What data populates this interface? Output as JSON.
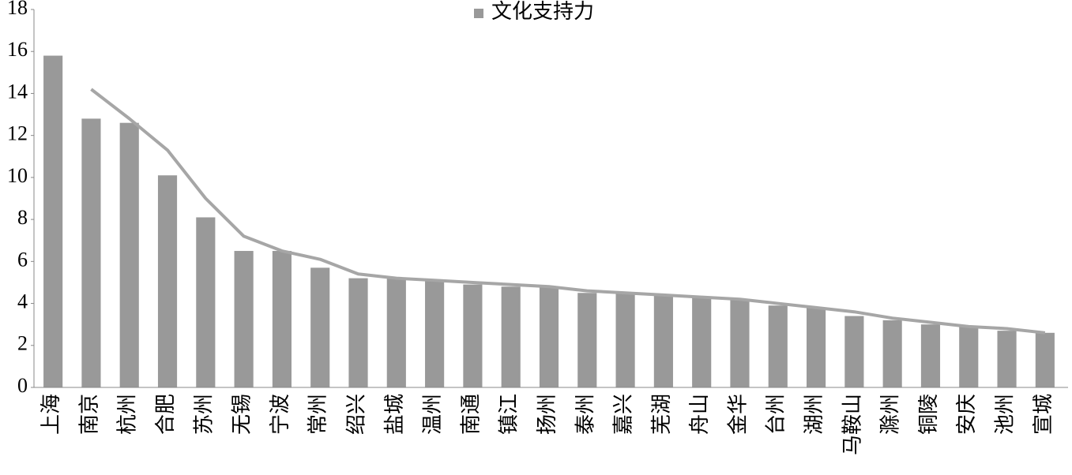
{
  "chart_data": {
    "type": "bar",
    "categories": [
      "上海",
      "南京",
      "杭州",
      "合肥",
      "苏州",
      "无锡",
      "宁波",
      "常州",
      "绍兴",
      "盐城",
      "温州",
      "南通",
      "镇江",
      "扬州",
      "泰州",
      "嘉兴",
      "芜湖",
      "舟山",
      "金华",
      "台州",
      "湖州",
      "马鞍山",
      "滁州",
      "铜陵",
      "安庆",
      "池州",
      "宣城"
    ],
    "series": [
      {
        "name": "文化支持力",
        "type": "bar",
        "color": "#999999",
        "values": [
          15.8,
          12.8,
          12.6,
          10.1,
          8.1,
          6.5,
          6.5,
          5.7,
          5.2,
          5.2,
          5.1,
          4.9,
          4.8,
          4.8,
          4.5,
          4.5,
          4.4,
          4.3,
          4.2,
          3.9,
          3.8,
          3.4,
          3.2,
          3.0,
          2.9,
          2.7,
          2.6
        ]
      },
      {
        "type": "line",
        "color": "#a6a6a6",
        "values": [
          null,
          14.2,
          12.8,
          11.3,
          9.0,
          7.2,
          6.5,
          6.1,
          5.4,
          5.2,
          5.1,
          5.0,
          4.9,
          4.8,
          4.6,
          4.5,
          4.4,
          4.3,
          4.2,
          4.0,
          3.8,
          3.6,
          3.3,
          3.1,
          2.9,
          2.8,
          2.6
        ]
      }
    ],
    "ylim": [
      0,
      18
    ],
    "yticks": [
      0,
      2,
      4,
      6,
      8,
      10,
      12,
      14,
      16,
      18
    ],
    "grid": false,
    "legend": "top"
  }
}
